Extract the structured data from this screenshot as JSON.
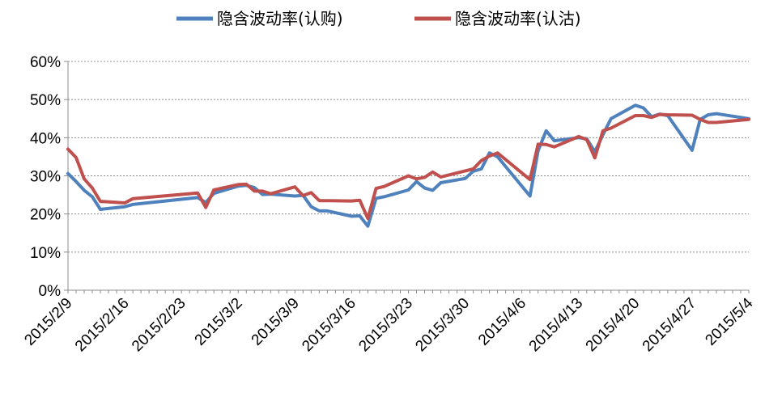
{
  "chart_data": {
    "type": "line",
    "title": "",
    "xlabel": "",
    "ylabel": "",
    "ylim": [
      0,
      0.6
    ],
    "y_ticks": [
      "0%",
      "10%",
      "20%",
      "30%",
      "40%",
      "50%",
      "60%"
    ],
    "x_range": [
      "2015-02-09",
      "2015-05-04"
    ],
    "x_ticks": [
      "2015/2/9",
      "2015/2/16",
      "2015/2/23",
      "2015/3/2",
      "2015/3/9",
      "2015/3/16",
      "2015/3/23",
      "2015/3/30",
      "2015/4/6",
      "2015/4/13",
      "2015/4/20",
      "2015/4/27",
      "2015/5/4"
    ],
    "grid": true,
    "legend_position": "top",
    "series": [
      {
        "name": "隐含波动率(认购)",
        "color": "#4F81BD",
        "points": [
          [
            "2015-02-09",
            0.306
          ],
          [
            "2015-02-10",
            0.285
          ],
          [
            "2015-02-11",
            0.262
          ],
          [
            "2015-02-12",
            0.245
          ],
          [
            "2015-02-13",
            0.212
          ],
          [
            "2015-02-16",
            0.219
          ],
          [
            "2015-02-17",
            0.225
          ],
          [
            "2015-02-25",
            0.243
          ],
          [
            "2015-02-26",
            0.23
          ],
          [
            "2015-02-27",
            0.254
          ],
          [
            "2015-03-02",
            0.273
          ],
          [
            "2015-03-03",
            0.275
          ],
          [
            "2015-03-04",
            0.269
          ],
          [
            "2015-03-05",
            0.251
          ],
          [
            "2015-03-06",
            0.252
          ],
          [
            "2015-03-09",
            0.247
          ],
          [
            "2015-03-10",
            0.249
          ],
          [
            "2015-03-11",
            0.219
          ],
          [
            "2015-03-12",
            0.208
          ],
          [
            "2015-03-13",
            0.208
          ],
          [
            "2015-03-16",
            0.194
          ],
          [
            "2015-03-17",
            0.195
          ],
          [
            "2015-03-18",
            0.168
          ],
          [
            "2015-03-19",
            0.241
          ],
          [
            "2015-03-20",
            0.245
          ],
          [
            "2015-03-23",
            0.263
          ],
          [
            "2015-03-24",
            0.285
          ],
          [
            "2015-03-25",
            0.268
          ],
          [
            "2015-03-26",
            0.262
          ],
          [
            "2015-03-27",
            0.282
          ],
          [
            "2015-03-30",
            0.293
          ],
          [
            "2015-03-31",
            0.312
          ],
          [
            "2015-04-01",
            0.318
          ],
          [
            "2015-04-02",
            0.36
          ],
          [
            "2015-04-03",
            0.35
          ],
          [
            "2015-04-07",
            0.247
          ],
          [
            "2015-04-08",
            0.366
          ],
          [
            "2015-04-09",
            0.418
          ],
          [
            "2015-04-10",
            0.392
          ],
          [
            "2015-04-13",
            0.4
          ],
          [
            "2015-04-14",
            0.397
          ],
          [
            "2015-04-15",
            0.363
          ],
          [
            "2015-04-16",
            0.408
          ],
          [
            "2015-04-17",
            0.45
          ],
          [
            "2015-04-20",
            0.485
          ],
          [
            "2015-04-21",
            0.478
          ],
          [
            "2015-04-22",
            0.455
          ],
          [
            "2015-04-23",
            0.462
          ],
          [
            "2015-04-24",
            0.458
          ],
          [
            "2015-04-27",
            0.367
          ],
          [
            "2015-04-28",
            0.448
          ],
          [
            "2015-04-29",
            0.46
          ],
          [
            "2015-04-30",
            0.463
          ],
          [
            "2015-05-04",
            0.45
          ]
        ]
      },
      {
        "name": "隐含波动率(认沽)",
        "color": "#C0504D",
        "points": [
          [
            "2015-02-09",
            0.37
          ],
          [
            "2015-02-10",
            0.348
          ],
          [
            "2015-02-11",
            0.292
          ],
          [
            "2015-02-12",
            0.268
          ],
          [
            "2015-02-13",
            0.233
          ],
          [
            "2015-02-16",
            0.229
          ],
          [
            "2015-02-17",
            0.24
          ],
          [
            "2015-02-25",
            0.255
          ],
          [
            "2015-02-26",
            0.217
          ],
          [
            "2015-02-27",
            0.263
          ],
          [
            "2015-03-02",
            0.277
          ],
          [
            "2015-03-03",
            0.278
          ],
          [
            "2015-03-04",
            0.26
          ],
          [
            "2015-03-05",
            0.26
          ],
          [
            "2015-03-06",
            0.253
          ],
          [
            "2015-03-09",
            0.271
          ],
          [
            "2015-03-10",
            0.248
          ],
          [
            "2015-03-11",
            0.256
          ],
          [
            "2015-03-12",
            0.235
          ],
          [
            "2015-03-13",
            0.235
          ],
          [
            "2015-03-16",
            0.234
          ],
          [
            "2015-03-17",
            0.236
          ],
          [
            "2015-03-18",
            0.188
          ],
          [
            "2015-03-19",
            0.267
          ],
          [
            "2015-03-20",
            0.272
          ],
          [
            "2015-03-23",
            0.3
          ],
          [
            "2015-03-24",
            0.292
          ],
          [
            "2015-03-25",
            0.296
          ],
          [
            "2015-03-26",
            0.31
          ],
          [
            "2015-03-27",
            0.297
          ],
          [
            "2015-03-30",
            0.313
          ],
          [
            "2015-03-31",
            0.318
          ],
          [
            "2015-04-01",
            0.34
          ],
          [
            "2015-04-02",
            0.352
          ],
          [
            "2015-04-03",
            0.36
          ],
          [
            "2015-04-07",
            0.29
          ],
          [
            "2015-04-08",
            0.383
          ],
          [
            "2015-04-09",
            0.382
          ],
          [
            "2015-04-10",
            0.376
          ],
          [
            "2015-04-13",
            0.403
          ],
          [
            "2015-04-14",
            0.395
          ],
          [
            "2015-04-15",
            0.347
          ],
          [
            "2015-04-16",
            0.418
          ],
          [
            "2015-04-17",
            0.425
          ],
          [
            "2015-04-20",
            0.458
          ],
          [
            "2015-04-21",
            0.458
          ],
          [
            "2015-04-22",
            0.453
          ],
          [
            "2015-04-23",
            0.461
          ],
          [
            "2015-04-24",
            0.46
          ],
          [
            "2015-04-27",
            0.459
          ],
          [
            "2015-04-28",
            0.448
          ],
          [
            "2015-04-29",
            0.44
          ],
          [
            "2015-04-30",
            0.44
          ],
          [
            "2015-05-04",
            0.448
          ]
        ]
      }
    ]
  }
}
